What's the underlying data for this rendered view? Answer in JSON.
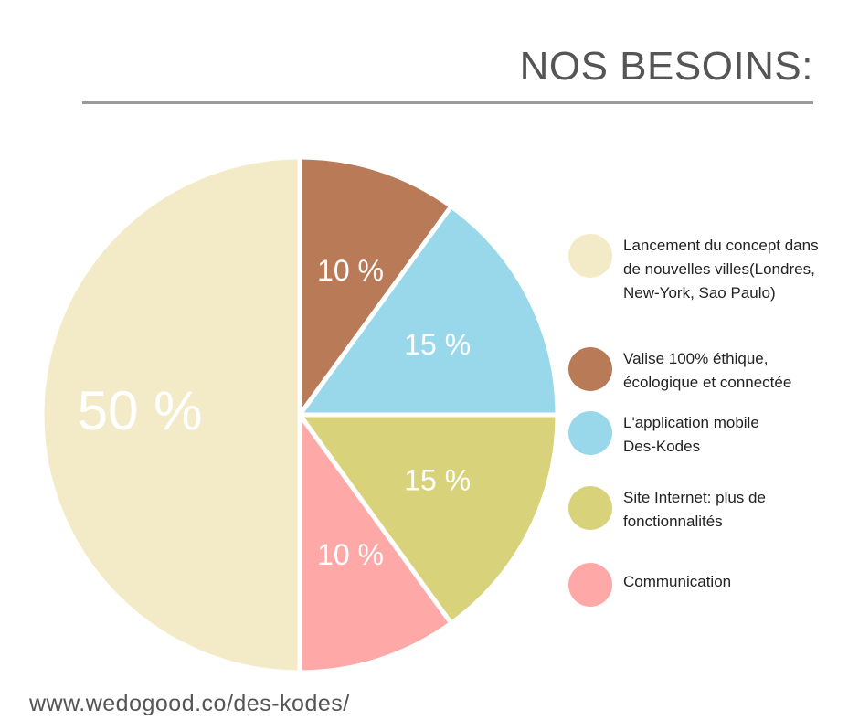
{
  "chart_data": {
    "type": "pie",
    "title": "NOS BESOINS:",
    "slices": [
      {
        "label": "Valise 100% éthique, écologique et connectée",
        "value": 10,
        "value_label": "10 %",
        "color": "#b97a57"
      },
      {
        "label": "L'application mobile Des-Kodes",
        "value": 15,
        "value_label": "15 %",
        "color": "#98d8ea"
      },
      {
        "label": "Site Internet: plus de fonctionnalités",
        "value": 15,
        "value_label": "15 %",
        "color": "#d8d27a"
      },
      {
        "label": "Communication",
        "value": 10,
        "value_label": "10 %",
        "color": "#ffa8a8"
      },
      {
        "label": "Lancement du concept dans de nouvelles villes(Londres, New-York, Sao Paulo)",
        "value": 50,
        "value_label": "50 %",
        "color": "#f3ebc8"
      }
    ],
    "legend_order": [
      4,
      0,
      1,
      2,
      3
    ],
    "legend_position": "right"
  },
  "footer": {
    "url": "www.wedogood.co/des-kodes/"
  }
}
